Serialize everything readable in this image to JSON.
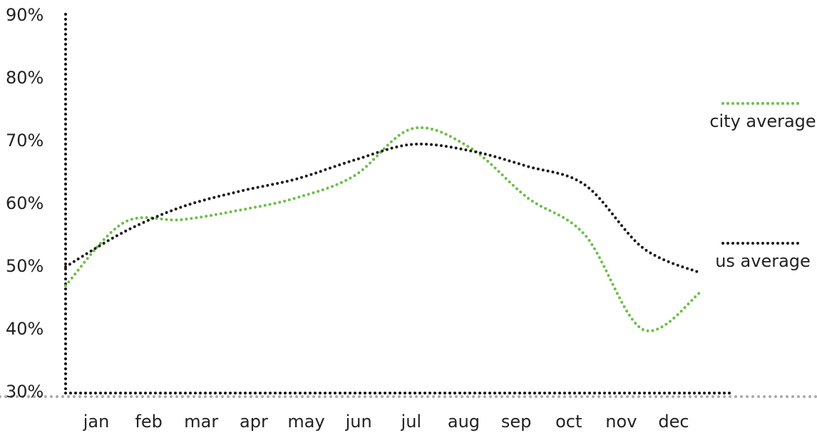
{
  "chart_data": {
    "type": "line",
    "categories": [
      "jan",
      "feb",
      "mar",
      "apr",
      "may",
      "jun",
      "jul",
      "aug",
      "sep",
      "oct",
      "nov",
      "dec"
    ],
    "series": [
      {
        "name": "city average",
        "color": "#6abf45",
        "values": [
          47,
          57,
          57.5,
          59,
          61,
          64.5,
          72,
          69,
          61,
          55,
          40,
          46
        ]
      },
      {
        "name": "us average",
        "color": "#1a1a1a",
        "values": [
          50,
          55.5,
          59.5,
          62,
          64,
          67,
          69.5,
          68.5,
          66,
          63,
          53,
          49
        ]
      }
    ],
    "ylim": [
      30,
      90
    ],
    "yticks": [
      {
        "value": 30,
        "label": "30%"
      },
      {
        "value": 40,
        "label": "40%"
      },
      {
        "value": 50,
        "label": "50%"
      },
      {
        "value": 60,
        "label": "60%"
      },
      {
        "value": 70,
        "label": "70%"
      },
      {
        "value": 80,
        "label": "80%"
      },
      {
        "value": 90,
        "label": "90%"
      }
    ]
  }
}
